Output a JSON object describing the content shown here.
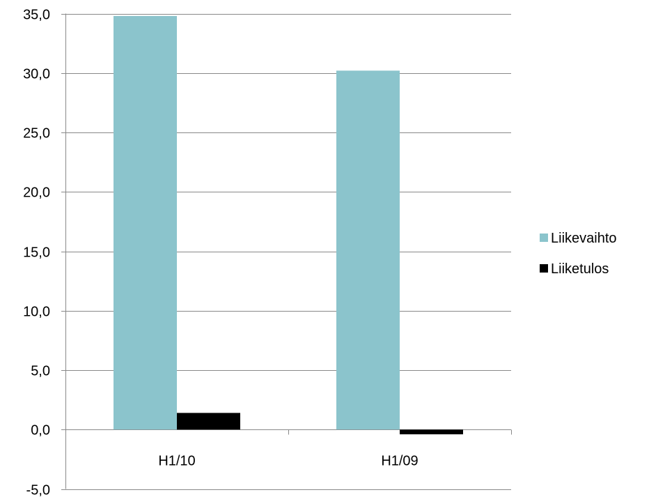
{
  "chart_data": {
    "type": "bar",
    "title": "",
    "xlabel": "",
    "ylabel": "",
    "categories": [
      "H1/10",
      "H1/09"
    ],
    "series": [
      {
        "name": "Liikevaihto",
        "values": [
          34.8,
          30.2
        ],
        "color": "#8bc4cc"
      },
      {
        "name": "Liiketulos",
        "values": [
          1.4,
          -0.4
        ],
        "color": "#000000"
      }
    ],
    "ylim": [
      -5,
      35
    ],
    "yticks": [
      -5,
      0,
      5,
      10,
      15,
      20,
      25,
      30,
      35
    ],
    "ytick_labels": [
      "-5,0",
      "0,0",
      "5,0",
      "10,0",
      "15,0",
      "20,0",
      "25,0",
      "30,0",
      "35,0"
    ],
    "grid": true,
    "legend_position": "right"
  }
}
